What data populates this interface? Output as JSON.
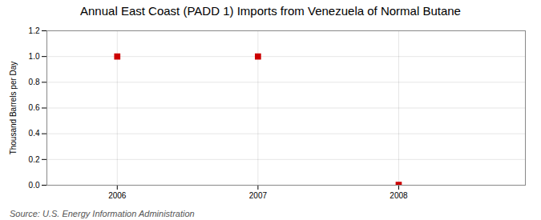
{
  "chart_data": {
    "type": "scatter",
    "title": "Annual East Coast (PADD 1) Imports from Venezuela of Normal Butane",
    "ylabel": "Thousand Barrels per Day",
    "source": "Source: U.S. Energy Information Administration",
    "x": [
      2006,
      2007,
      2008
    ],
    "values": [
      1.0,
      1.0,
      0.003
    ],
    "color": "#CC0000",
    "marker": "square",
    "xlim": [
      2005.5,
      2008.9
    ],
    "xticks": [
      2006,
      2007,
      2008
    ],
    "ylim": [
      0.0,
      1.2
    ],
    "yticks": [
      {
        "value": 0.0,
        "label": "0.0"
      },
      0.2,
      0.4,
      0.6,
      0.8,
      {
        "value": 1.0,
        "label": "1.0"
      },
      1.2
    ],
    "grid": true
  }
}
